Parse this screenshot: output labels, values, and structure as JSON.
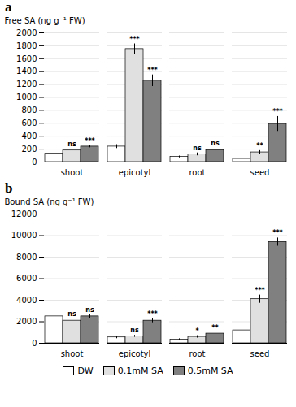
{
  "chart_data": [
    {
      "type": "bar",
      "title": "a",
      "ylabel": "Free SA (ng g⁻¹ FW)",
      "categories": [
        "shoot",
        "epicotyl",
        "root",
        "seed"
      ],
      "series": [
        {
          "name": "DW",
          "color": "#ffffff",
          "values": [
            130,
            240,
            80,
            50
          ],
          "errors": [
            22,
            30,
            14,
            10
          ]
        },
        {
          "name": "0.1mM SA",
          "color": "#e0e0e0",
          "values": [
            180,
            1750,
            120,
            150
          ],
          "errors": [
            22,
            80,
            22,
            28
          ],
          "annotations": [
            "ns",
            "***",
            "ns",
            "**"
          ]
        },
        {
          "name": "0.5mM SA",
          "color": "#808080",
          "values": [
            240,
            1260,
            185,
            590
          ],
          "errors": [
            18,
            90,
            28,
            115
          ],
          "annotations": [
            "***",
            "***",
            "ns",
            "***"
          ]
        }
      ],
      "ylim": [
        0,
        2000
      ],
      "yticks": [
        0,
        200,
        400,
        600,
        800,
        1000,
        1200,
        1400,
        1600,
        1800,
        2000
      ],
      "grid": true
    },
    {
      "type": "bar",
      "title": "b",
      "ylabel": "Bound SA (ng g⁻¹ FW)",
      "categories": [
        "shoot",
        "epicotyl",
        "root",
        "seed"
      ],
      "series": [
        {
          "name": "DW",
          "color": "#ffffff",
          "values": [
            2500,
            550,
            350,
            1200
          ],
          "errors": [
            200,
            120,
            70,
            130
          ]
        },
        {
          "name": "0.1mM SA",
          "color": "#e0e0e0",
          "values": [
            2100,
            650,
            600,
            4100
          ],
          "errors": [
            180,
            90,
            110,
            380
          ],
          "annotations": [
            "ns",
            "ns",
            "*",
            "***"
          ]
        },
        {
          "name": "0.5mM SA",
          "color": "#808080",
          "values": [
            2500,
            2100,
            900,
            9400
          ],
          "errors": [
            180,
            190,
            120,
            380
          ],
          "annotations": [
            "ns",
            "***",
            "**",
            "***"
          ]
        }
      ],
      "ylim": [
        0,
        12000
      ],
      "yticks": [
        0,
        2000,
        4000,
        6000,
        8000,
        10000,
        12000
      ],
      "grid": true,
      "legend": "bottom"
    }
  ]
}
